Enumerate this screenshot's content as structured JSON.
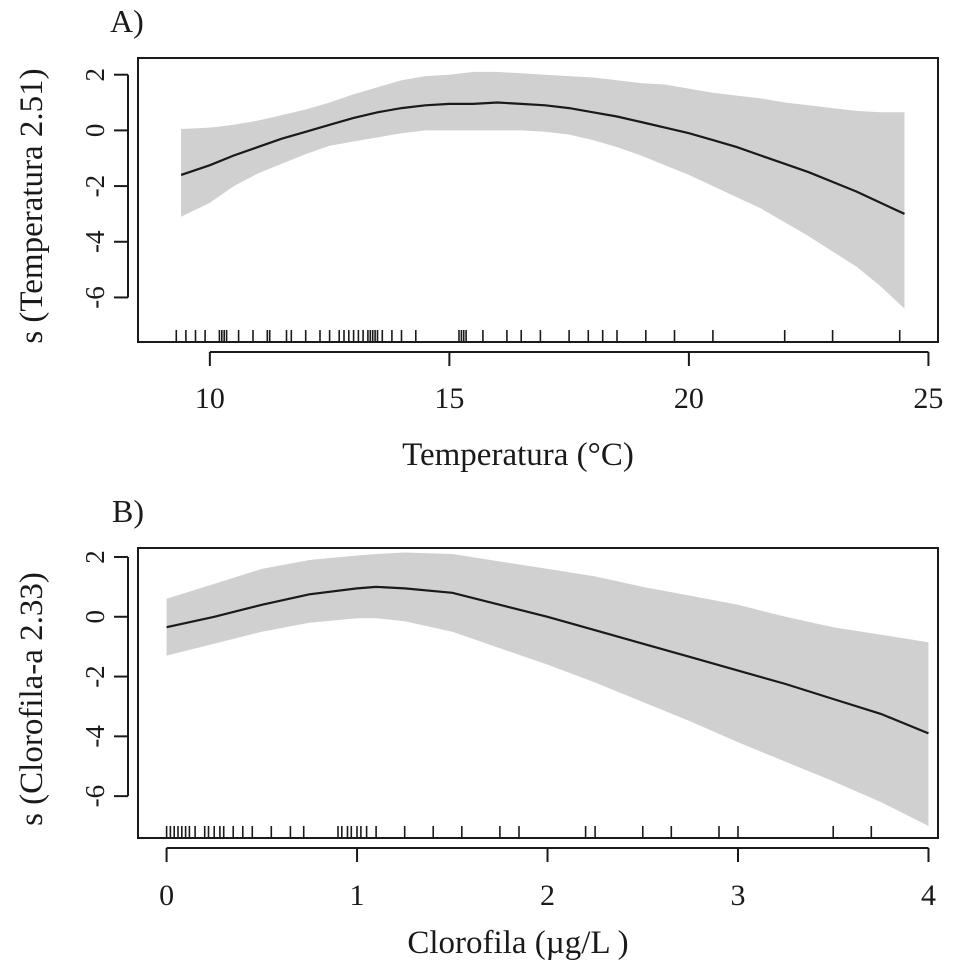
{
  "chart_data": [
    {
      "type": "line",
      "panel_label": "A)",
      "xlabel": "Temperatura (°C)",
      "ylabel": "s (Temperatura 2.51)",
      "xlim": [
        8.5,
        25.2
      ],
      "ylim": [
        -7.6,
        2.6
      ],
      "xticks": [
        10,
        15,
        20,
        25
      ],
      "yticks": [
        2,
        0,
        -2,
        -4,
        -6
      ],
      "x": [
        9.4,
        10,
        10.5,
        11,
        11.5,
        12,
        12.5,
        13,
        13.5,
        14,
        14.5,
        15,
        15.5,
        16,
        16.5,
        17,
        17.5,
        18,
        18.5,
        19,
        19.5,
        20,
        20.5,
        21,
        21.5,
        22,
        22.5,
        23,
        23.5,
        24,
        24.5
      ],
      "fit": [
        -1.6,
        -1.25,
        -0.9,
        -0.6,
        -0.3,
        -0.05,
        0.2,
        0.45,
        0.65,
        0.8,
        0.9,
        0.95,
        0.95,
        1.0,
        0.95,
        0.9,
        0.8,
        0.65,
        0.5,
        0.3,
        0.1,
        -0.1,
        -0.35,
        -0.6,
        -0.9,
        -1.2,
        -1.5,
        -1.85,
        -2.2,
        -2.6,
        -3.0
      ],
      "upper": [
        0.05,
        0.1,
        0.2,
        0.35,
        0.55,
        0.75,
        1.0,
        1.3,
        1.55,
        1.8,
        1.95,
        2.0,
        2.1,
        2.1,
        2.05,
        2.0,
        1.95,
        1.9,
        1.8,
        1.7,
        1.65,
        1.5,
        1.35,
        1.25,
        1.15,
        1.0,
        0.9,
        0.8,
        0.7,
        0.65,
        0.65
      ],
      "lower": [
        -3.1,
        -2.6,
        -2.0,
        -1.55,
        -1.2,
        -0.85,
        -0.55,
        -0.4,
        -0.25,
        -0.1,
        0.0,
        0.0,
        0.0,
        0.0,
        0.0,
        -0.05,
        -0.15,
        -0.35,
        -0.6,
        -0.9,
        -1.25,
        -1.6,
        -2.0,
        -2.4,
        -2.8,
        -3.3,
        -3.8,
        -4.35,
        -4.9,
        -5.6,
        -6.4
      ],
      "rug": [
        9.3,
        9.5,
        9.7,
        9.9,
        10.2,
        10.25,
        10.3,
        10.35,
        10.6,
        10.9,
        11.2,
        11.25,
        11.6,
        11.7,
        12.0,
        12.3,
        12.5,
        12.7,
        12.8,
        12.9,
        13.0,
        13.1,
        13.2,
        13.3,
        13.35,
        13.4,
        13.45,
        13.5,
        13.6,
        13.8,
        14.0,
        14.3,
        15.2,
        15.25,
        15.3,
        15.35,
        15.7,
        16.2,
        16.5,
        16.9,
        17.5,
        17.9,
        18.2,
        18.5,
        19.1,
        19.7,
        20.5,
        22.0,
        23.0,
        24.4
      ]
    },
    {
      "type": "line",
      "panel_label": "B)",
      "xlabel": "Clorofila  (µg/L )",
      "ylabel": "s (Clorofila-a 2.33)",
      "xlim": [
        -0.15,
        4.05
      ],
      "ylim": [
        -7.4,
        2.3
      ],
      "xticks": [
        0,
        1,
        2,
        3,
        4
      ],
      "yticks": [
        2,
        0,
        -2,
        -4,
        -6
      ],
      "x": [
        0,
        0.25,
        0.5,
        0.75,
        1.0,
        1.1,
        1.25,
        1.5,
        1.75,
        2.0,
        2.25,
        2.5,
        2.75,
        3.0,
        3.25,
        3.5,
        3.75,
        4.0
      ],
      "fit": [
        -0.35,
        0.0,
        0.4,
        0.75,
        0.95,
        1.0,
        0.95,
        0.8,
        0.4,
        0.0,
        -0.45,
        -0.9,
        -1.35,
        -1.8,
        -2.25,
        -2.75,
        -3.25,
        -3.9
      ],
      "upper": [
        0.6,
        1.1,
        1.6,
        1.9,
        2.05,
        2.1,
        2.15,
        2.1,
        1.85,
        1.6,
        1.35,
        1.0,
        0.7,
        0.4,
        0.0,
        -0.35,
        -0.6,
        -0.85
      ],
      "lower": [
        -1.3,
        -0.9,
        -0.5,
        -0.2,
        -0.05,
        -0.05,
        -0.15,
        -0.5,
        -1.05,
        -1.6,
        -2.2,
        -2.85,
        -3.5,
        -4.2,
        -4.85,
        -5.5,
        -6.2,
        -7.0
      ],
      "rug": [
        0.0,
        0.02,
        0.04,
        0.06,
        0.08,
        0.1,
        0.12,
        0.15,
        0.2,
        0.22,
        0.25,
        0.28,
        0.3,
        0.35,
        0.4,
        0.45,
        0.55,
        0.65,
        0.72,
        0.9,
        0.92,
        0.95,
        0.97,
        1.0,
        1.02,
        1.05,
        1.1,
        1.25,
        1.4,
        1.55,
        1.75,
        1.85,
        2.2,
        2.25,
        2.5,
        2.65,
        2.9,
        3.0,
        3.5,
        3.7
      ]
    }
  ],
  "colors": {
    "band": "#d0d0d0",
    "line": "#1a1a1a",
    "axis": "#1a1a1a"
  }
}
